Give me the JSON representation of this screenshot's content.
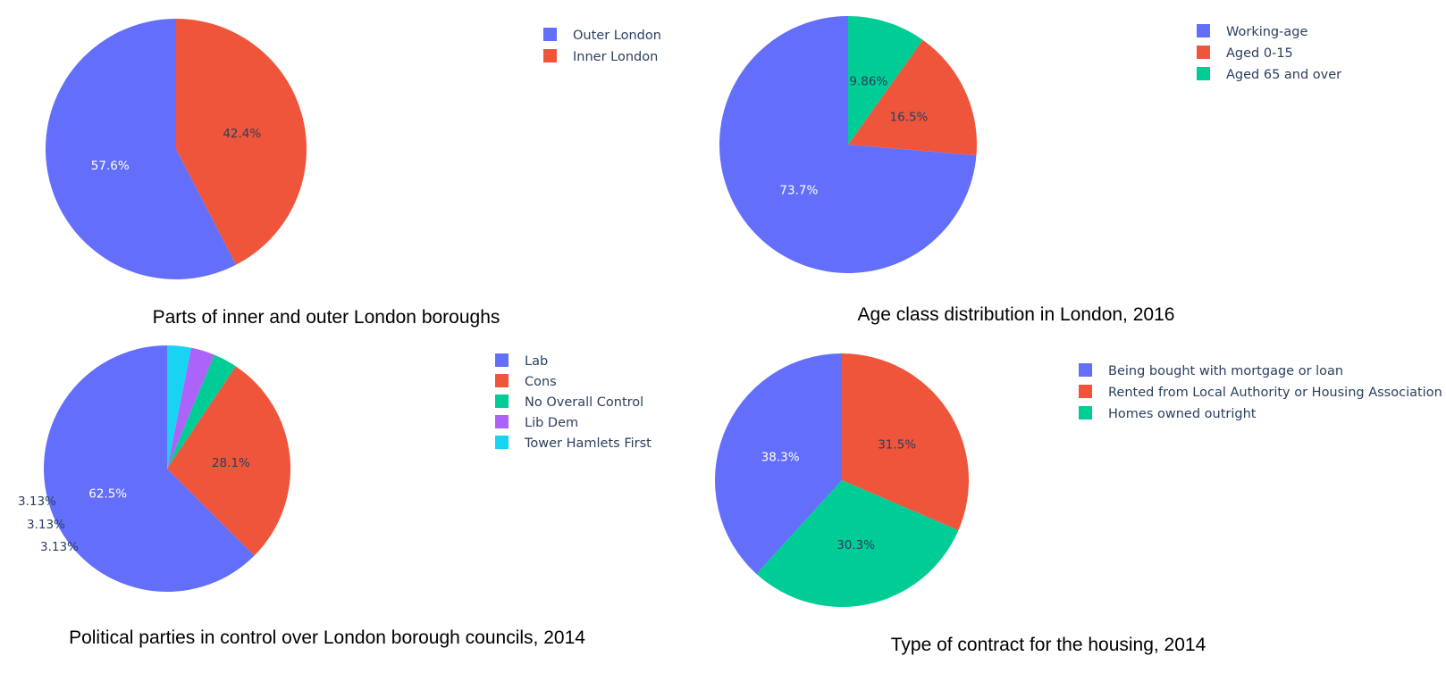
{
  "chart_data": [
    {
      "type": "pie",
      "title": "Parts of inner and outer London boroughs",
      "labels": [
        "Outer London",
        "Inner London"
      ],
      "values": [
        57.6,
        42.4
      ],
      "value_labels": [
        "57.6%",
        "42.4%"
      ],
      "colors": [
        "#636efa",
        "#ef553b"
      ],
      "legend": "top-right"
    },
    {
      "type": "pie",
      "title": "Age class distribution in London, 2016",
      "labels": [
        "Working-age",
        "Aged 0-15",
        "Aged 65 and over"
      ],
      "values": [
        73.7,
        16.5,
        9.86
      ],
      "value_labels": [
        "73.7%",
        "16.5%",
        "9.86%"
      ],
      "colors": [
        "#636efa",
        "#ef553b",
        "#00cc96"
      ],
      "legend": "top-right"
    },
    {
      "type": "pie",
      "title": "Political parties in control over London borough councils, 2014",
      "labels": [
        "Lab",
        "Cons",
        "No Overall Control",
        "Lib Dem",
        "Tower Hamlets First"
      ],
      "values": [
        62.5,
        28.1,
        3.13,
        3.13,
        3.13
      ],
      "value_labels": [
        "62.5%",
        "28.1%",
        "3.13%",
        "3.13%",
        "3.13%"
      ],
      "colors": [
        "#636efa",
        "#ef553b",
        "#00cc96",
        "#ab63fa",
        "#19d3f3"
      ],
      "legend": "top-right"
    },
    {
      "type": "pie",
      "title": "Type of contract for the housing, 2014",
      "labels": [
        "Being bought with mortgage or loan",
        "Homes owned outright",
        "Rented from Local Authority or Housing Association"
      ],
      "values": [
        38.3,
        30.3,
        31.5
      ],
      "value_labels": [
        "38.3%",
        "30.3%",
        "31.5%"
      ],
      "legend_labels": [
        "Being bought with mortgage or loan",
        "Rented from Local Authority or Housing Association",
        "Homes owned outright"
      ],
      "colors": [
        "#636efa",
        "#00cc96",
        "#ef553b"
      ],
      "legend_colors": [
        "#636efa",
        "#ef553b",
        "#00cc96"
      ],
      "legend": "top-right"
    }
  ]
}
